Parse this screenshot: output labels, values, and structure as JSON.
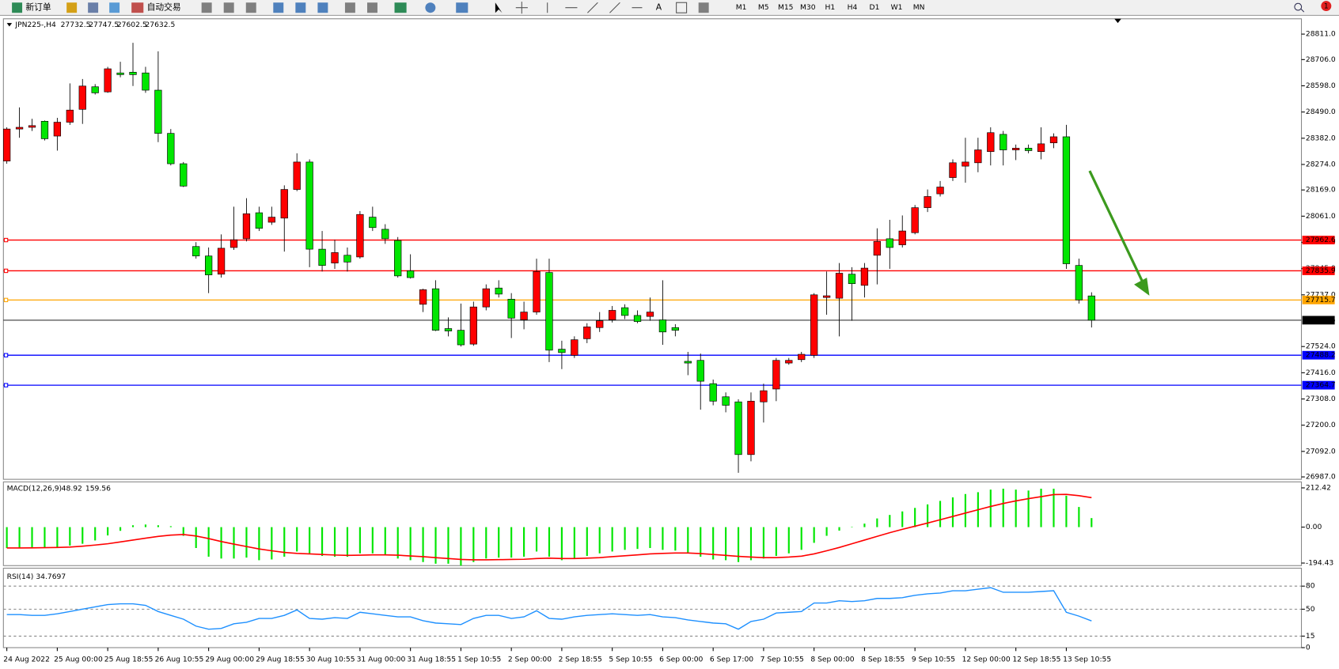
{
  "toolbar": {
    "new_order": "新订单",
    "auto_trading": "自动交易",
    "timeframes": [
      "M1",
      "M5",
      "M15",
      "M30",
      "H1",
      "H4",
      "D1",
      "W1",
      "MN"
    ],
    "notifications": 1
  },
  "chart_data": [
    {
      "type": "candlestick",
      "title": "JPN225-,H4",
      "categories": [
        "24 Aug 2022",
        null,
        null,
        null,
        "25 Aug 00:00",
        null,
        null,
        null,
        "25 Aug 18:55",
        null,
        null,
        null,
        "26 Aug 10:55",
        null,
        null,
        null,
        "29 Aug 00:00",
        null,
        null,
        null,
        "29 Aug 18:55",
        null,
        null,
        null,
        "30 Aug 10:55",
        null,
        null,
        null,
        "31 Aug 00:00",
        null,
        null,
        null,
        "31 Aug 18:55",
        null,
        null,
        null,
        "1 Sep 10:55",
        null,
        null,
        null,
        "2 Sep 00:00",
        null,
        null,
        null,
        "2 Sep 18:55",
        null,
        null,
        null,
        "5 Sep 10:55",
        null,
        null,
        null,
        "6 Sep 00:00",
        null,
        null,
        null,
        "6 Sep 17:00",
        null,
        null,
        null,
        "7 Sep 10:55",
        null,
        null,
        null,
        "8 Sep 00:00",
        null,
        null,
        null,
        "8 Sep 18:55",
        null,
        null,
        null,
        "9 Sep 10:55",
        null,
        null,
        null,
        "12 Sep 00:00",
        null,
        null,
        null,
        "12 Sep 18:55",
        null,
        null,
        null,
        "13 Sep 10:55",
        null,
        null
      ],
      "open": [
        28288,
        28420,
        28427,
        28452,
        28391,
        28448,
        28501,
        28594,
        28573,
        28651,
        28654,
        28651,
        28580,
        28402,
        28277,
        27936,
        27897,
        27822,
        27932,
        27968,
        28075,
        28036,
        28053,
        28171,
        28284,
        27925,
        27868,
        27900,
        27893,
        28057,
        28007,
        27961,
        27836,
        27698,
        27762,
        27598,
        27591,
        27534,
        27687,
        27765,
        27719,
        27634,
        27666,
        27829,
        27513,
        27488,
        27556,
        27602,
        27634,
        27684,
        27652,
        27648,
        27634,
        27602,
        27463,
        27467,
        27371,
        27317,
        27296,
        27079,
        27296,
        27349,
        27456,
        27470,
        27488,
        27726,
        27723,
        27822,
        27776,
        27900,
        27968,
        27943,
        27993,
        28096,
        28153,
        28220,
        28267,
        28281,
        28327,
        28398,
        28334,
        28341,
        28327,
        28363,
        28388,
        27858,
        27732.5
      ],
      "high": [
        28427,
        28509,
        28462,
        28455,
        28466,
        28608,
        28626,
        28605,
        28676,
        28697,
        28775,
        28676,
        28740,
        28420,
        28284,
        27954,
        27932,
        27986,
        28100,
        28135,
        28100,
        28100,
        28188,
        28320,
        28295,
        28000,
        27964,
        27932,
        28082,
        28100,
        28028,
        27975,
        27904,
        27762,
        27797,
        27644,
        27701,
        27709,
        27780,
        27797,
        27744,
        27709,
        27886,
        27886,
        27548,
        27566,
        27620,
        27666,
        27691,
        27698,
        27673,
        27726,
        27797,
        27616,
        27502,
        27495,
        27388,
        27335,
        27307,
        27335,
        27371,
        27477,
        27477,
        27502,
        27744,
        27833,
        27868,
        27851,
        27868,
        28011,
        28046,
        28064,
        28107,
        28171,
        28206,
        28295,
        28384,
        28384,
        28427,
        28412,
        28356,
        28356,
        28427,
        28402,
        28437,
        27886,
        27747.5
      ],
      "low": [
        28277,
        28384,
        28412,
        28373,
        28331,
        28437,
        28441,
        28562,
        28569,
        28633,
        28597,
        28569,
        28366,
        28270,
        28181,
        27886,
        27744,
        27808,
        27922,
        27957,
        28000,
        28025,
        27915,
        28164,
        27851,
        27833,
        27844,
        27833,
        27886,
        28000,
        27947,
        27808,
        27804,
        27666,
        27588,
        27566,
        27524,
        27527,
        27673,
        27726,
        27559,
        27595,
        27655,
        27460,
        27431,
        27477,
        27538,
        27584,
        27623,
        27637,
        27620,
        27630,
        27531,
        27566,
        27406,
        27264,
        27282,
        27253,
        27004,
        27051,
        27211,
        27299,
        27449,
        27460,
        27477,
        27655,
        27566,
        27630,
        27726,
        27780,
        27844,
        27932,
        27986,
        28078,
        28142,
        28206,
        28199,
        28242,
        28270,
        28270,
        28292,
        28320,
        28295,
        28341,
        27844,
        27701,
        27602.5
      ],
      "close": [
        28420,
        28427,
        28434,
        28380,
        28448,
        28498,
        28597,
        28569,
        28668,
        28644,
        28644,
        28580,
        28402,
        28277,
        28185,
        27897,
        27819,
        27929,
        27964,
        28071,
        28011,
        28057,
        28171,
        28284,
        27925,
        27858,
        27911,
        27872,
        28068,
        28014,
        27968,
        27815,
        27808,
        27758,
        27591,
        27588,
        27531,
        27687,
        27762,
        27740,
        27641,
        27666,
        27833,
        27509,
        27499,
        27552,
        27605,
        27630,
        27673,
        27652,
        27627,
        27666,
        27584,
        27591,
        27456,
        27381,
        27299,
        27282,
        27079,
        27299,
        27342,
        27467,
        27467,
        27492,
        27737,
        27733,
        27826,
        27783,
        27847,
        27957,
        27932,
        28000,
        28096,
        28142,
        28181,
        28281,
        28284,
        28334,
        28405,
        28334,
        28341,
        28331,
        28359,
        28388,
        27865,
        27716,
        27632.5
      ],
      "up_color": "#ff0000",
      "down_color": "#00e600",
      "last_price_color": "#000000",
      "ylim": [
        26977,
        28874
      ],
      "yticks": [
        {
          "value": 28811,
          "label": "28811.0"
        },
        {
          "value": 28706,
          "label": "28706.0"
        },
        {
          "value": 28598,
          "label": "28598.0"
        },
        {
          "value": 28490,
          "label": "28490.0"
        },
        {
          "value": 28382,
          "label": "28382.0"
        },
        {
          "value": 28274,
          "label": "28274.0"
        },
        {
          "value": 28169,
          "label": "28169.0"
        },
        {
          "value": 28061,
          "label": "28061.0"
        },
        {
          "value": 27953,
          "label": "27953.0"
        },
        {
          "value": 27845,
          "label": "27845.0"
        },
        {
          "value": 27737,
          "label": "27737.0"
        },
        {
          "value": 27524,
          "label": "27524.0"
        },
        {
          "value": 27416,
          "label": "27416.0"
        },
        {
          "value": 27308,
          "label": "27308.0"
        },
        {
          "value": 27200,
          "label": "27200.0"
        },
        {
          "value": 27092,
          "label": "27092.0"
        },
        {
          "value": 26987,
          "label": "26987.0"
        }
      ],
      "levels": [
        {
          "value": 27962.6,
          "color": "#ff0000"
        },
        {
          "value": 27835.9,
          "color": "#ff0000"
        },
        {
          "value": 27715.7,
          "color": "#ffa500"
        },
        {
          "value": 27488.2,
          "color": "#0000ff"
        },
        {
          "value": 27364.7,
          "color": "#0000ff"
        }
      ]
    },
    {
      "type": "macd",
      "title": "MACD(12,26,9)",
      "histogram": [
        -113,
        -113,
        -113,
        -110,
        -108,
        -100,
        -90,
        -72,
        -45,
        -20,
        10,
        14,
        10,
        5,
        -47,
        -113,
        -160,
        -170,
        -170,
        -165,
        -179,
        -175,
        -160,
        -132,
        -142,
        -156,
        -160,
        -160,
        -142,
        -142,
        -151,
        -170,
        -179,
        -189,
        -198,
        -198,
        -208,
        -189,
        -170,
        -165,
        -165,
        -160,
        -132,
        -160,
        -179,
        -170,
        -156,
        -142,
        -132,
        -123,
        -118,
        -113,
        -123,
        -127,
        -142,
        -160,
        -175,
        -179,
        -189,
        -179,
        -170,
        -156,
        -142,
        -123,
        -85,
        -47,
        -19,
        0,
        19,
        47,
        66,
        85,
        104,
        123,
        142,
        161,
        179,
        189,
        203,
        208,
        203,
        198,
        208,
        208,
        170,
        109,
        48.92
      ],
      "signal": [
        -113,
        -113,
        -112,
        -111,
        -110,
        -108,
        -103,
        -97,
        -90,
        -80,
        -70,
        -60,
        -50,
        -43,
        -40,
        -48,
        -62,
        -78,
        -92,
        -105,
        -118,
        -128,
        -137,
        -142,
        -145,
        -148,
        -151,
        -153,
        -152,
        -150,
        -150,
        -152,
        -156,
        -160,
        -165,
        -170,
        -175,
        -177,
        -177,
        -176,
        -175,
        -174,
        -170,
        -168,
        -170,
        -170,
        -168,
        -165,
        -160,
        -155,
        -150,
        -145,
        -142,
        -140,
        -140,
        -143,
        -148,
        -153,
        -158,
        -162,
        -165,
        -165,
        -162,
        -157,
        -145,
        -128,
        -110,
        -90,
        -70,
        -50,
        -30,
        -12,
        5,
        22,
        40,
        58,
        76,
        94,
        112,
        128,
        142,
        154,
        165,
        176,
        177,
        170,
        159.56
      ],
      "histogram_color": "#00e600",
      "signal_color": "#ff0000",
      "ylim": [
        -208.3,
        244.8
      ],
      "yticks": [
        212.42,
        {
          "value": 0,
          "label": "0.00"
        },
        -194.43
      ]
    },
    {
      "type": "line",
      "title": "RSI(14)",
      "values": [
        43,
        43,
        42,
        42,
        44,
        47,
        50,
        53,
        56,
        57,
        57,
        55,
        47,
        42,
        37,
        28,
        24,
        25,
        31,
        33,
        38,
        38,
        42,
        49,
        38,
        37,
        39,
        38,
        46,
        44,
        42,
        40,
        40,
        35,
        32,
        31,
        30,
        38,
        42,
        42,
        38,
        40,
        48,
        38,
        37,
        40,
        42,
        43,
        44,
        43,
        42,
        43,
        40,
        39,
        36,
        34,
        32,
        31,
        24,
        34,
        37,
        45,
        46,
        47,
        58,
        58,
        61,
        60,
        61,
        64,
        64,
        65,
        68,
        70,
        71,
        74,
        74,
        76,
        78,
        72,
        72,
        72,
        73,
        74,
        46,
        41,
        34.7697
      ],
      "color": "#1e90ff",
      "ylim": [
        0,
        100
      ],
      "yticks": [
        80,
        50,
        15,
        0
      ]
    }
  ]
}
